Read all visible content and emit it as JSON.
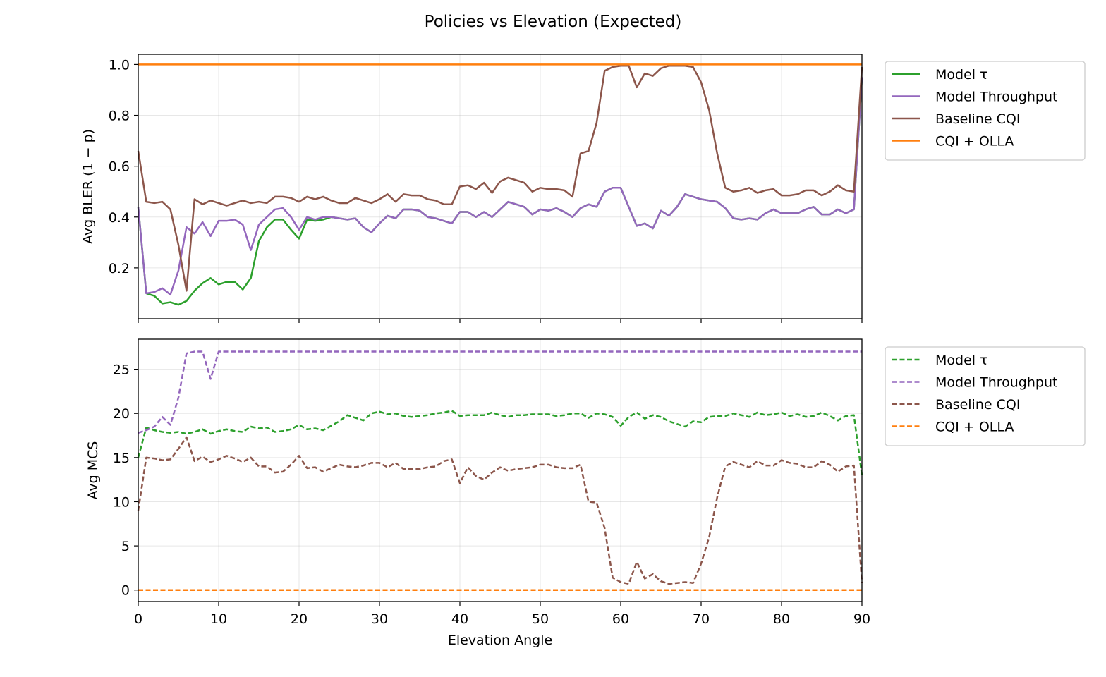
{
  "chart_data": {
    "type": "line",
    "title": "Policies vs Elevation (Expected)",
    "xlabel": "Elevation Angle",
    "xlim": [
      0,
      90
    ],
    "xticks": [
      0,
      10,
      20,
      30,
      40,
      50,
      60,
      70,
      80,
      90
    ],
    "x": [
      0,
      1,
      2,
      3,
      4,
      5,
      6,
      7,
      8,
      9,
      10,
      11,
      12,
      13,
      14,
      15,
      16,
      17,
      18,
      19,
      20,
      21,
      22,
      23,
      24,
      25,
      26,
      27,
      28,
      29,
      30,
      31,
      32,
      33,
      34,
      35,
      36,
      37,
      38,
      39,
      40,
      41,
      42,
      43,
      44,
      45,
      46,
      47,
      48,
      49,
      50,
      51,
      52,
      53,
      54,
      55,
      56,
      57,
      58,
      59,
      60,
      61,
      62,
      63,
      64,
      65,
      66,
      67,
      68,
      69,
      70,
      71,
      72,
      73,
      74,
      75,
      76,
      77,
      78,
      79,
      80,
      81,
      82,
      83,
      84,
      85,
      86,
      87,
      88,
      89,
      90
    ],
    "panels": [
      {
        "name": "top",
        "ylabel": "Avg BLER (1 − p)",
        "ylim": [
          0.0,
          1.04
        ],
        "yticks": [
          0.2,
          0.4,
          0.6,
          0.8,
          1.0
        ],
        "ytick_labels": [
          "0.2",
          "0.4",
          "0.6",
          "0.8",
          "1.0"
        ],
        "line_style": "solid",
        "series": [
          {
            "name": "Model τ",
            "color": "#2ca02c",
            "values": [
              0.44,
              0.1,
              0.09,
              0.06,
              0.065,
              0.055,
              0.07,
              0.11,
              0.14,
              0.16,
              0.135,
              0.145,
              0.145,
              0.115,
              0.16,
              0.305,
              0.36,
              0.39,
              0.39,
              0.35,
              0.315,
              0.39,
              0.385,
              0.39,
              0.4,
              0.395,
              0.39,
              0.395,
              0.36,
              0.34,
              0.375,
              0.405,
              0.395,
              0.43,
              0.43,
              0.425,
              0.4,
              0.395,
              0.385,
              0.375,
              0.42,
              0.42,
              0.4,
              0.42,
              0.4,
              0.43,
              0.46,
              0.45,
              0.44,
              0.41,
              0.43,
              0.425,
              0.435,
              0.42,
              0.4,
              0.435,
              0.45,
              0.44,
              0.5,
              0.515,
              0.515,
              0.44,
              0.365,
              0.375,
              0.355,
              0.425,
              0.405,
              0.44,
              0.49,
              0.48,
              0.47,
              0.465,
              0.46,
              0.435,
              0.395,
              0.39,
              0.395,
              0.39,
              0.415,
              0.43,
              0.415,
              0.415,
              0.415,
              0.43,
              0.44,
              0.41,
              0.41,
              0.43,
              0.415,
              0.43,
              0.95
            ]
          },
          {
            "name": "Model Throughput",
            "color": "#9467bd",
            "values": [
              0.44,
              0.1,
              0.105,
              0.12,
              0.095,
              0.19,
              0.36,
              0.335,
              0.38,
              0.325,
              0.385,
              0.385,
              0.39,
              0.37,
              0.27,
              0.37,
              0.4,
              0.43,
              0.435,
              0.4,
              0.35,
              0.4,
              0.39,
              0.4,
              0.4,
              0.395,
              0.39,
              0.395,
              0.36,
              0.34,
              0.375,
              0.405,
              0.395,
              0.43,
              0.43,
              0.425,
              0.4,
              0.395,
              0.385,
              0.375,
              0.42,
              0.42,
              0.4,
              0.42,
              0.4,
              0.43,
              0.46,
              0.45,
              0.44,
              0.41,
              0.43,
              0.425,
              0.435,
              0.42,
              0.4,
              0.435,
              0.45,
              0.44,
              0.5,
              0.515,
              0.515,
              0.44,
              0.365,
              0.375,
              0.355,
              0.425,
              0.405,
              0.44,
              0.49,
              0.48,
              0.47,
              0.465,
              0.46,
              0.435,
              0.395,
              0.39,
              0.395,
              0.39,
              0.415,
              0.43,
              0.415,
              0.415,
              0.415,
              0.43,
              0.44,
              0.41,
              0.41,
              0.43,
              0.415,
              0.43,
              0.95
            ]
          },
          {
            "name": "Baseline CQI",
            "color": "#8c564b",
            "values": [
              0.66,
              0.46,
              0.455,
              0.46,
              0.43,
              0.29,
              0.11,
              0.47,
              0.45,
              0.465,
              0.455,
              0.445,
              0.455,
              0.465,
              0.455,
              0.46,
              0.455,
              0.48,
              0.48,
              0.475,
              0.46,
              0.48,
              0.47,
              0.48,
              0.465,
              0.455,
              0.455,
              0.475,
              0.465,
              0.455,
              0.47,
              0.49,
              0.46,
              0.49,
              0.485,
              0.485,
              0.47,
              0.465,
              0.45,
              0.45,
              0.52,
              0.525,
              0.51,
              0.535,
              0.495,
              0.54,
              0.555,
              0.545,
              0.535,
              0.5,
              0.515,
              0.51,
              0.51,
              0.505,
              0.48,
              0.65,
              0.66,
              0.77,
              0.975,
              0.99,
              0.995,
              0.995,
              0.91,
              0.965,
              0.955,
              0.985,
              0.995,
              0.995,
              0.995,
              0.99,
              0.93,
              0.82,
              0.65,
              0.515,
              0.5,
              0.505,
              0.515,
              0.495,
              0.505,
              0.51,
              0.485,
              0.485,
              0.49,
              0.505,
              0.505,
              0.485,
              0.5,
              0.525,
              0.505,
              0.5,
              0.99
            ]
          },
          {
            "name": "CQI + OLLA",
            "color": "#ff7f0e",
            "values": [
              1.0,
              1.0,
              1.0,
              1.0,
              1.0,
              1.0,
              1.0,
              1.0,
              1.0,
              1.0,
              1.0,
              1.0,
              1.0,
              1.0,
              1.0,
              1.0,
              1.0,
              1.0,
              1.0,
              1.0,
              1.0,
              1.0,
              1.0,
              1.0,
              1.0,
              1.0,
              1.0,
              1.0,
              1.0,
              1.0,
              1.0,
              1.0,
              1.0,
              1.0,
              1.0,
              1.0,
              1.0,
              1.0,
              1.0,
              1.0,
              1.0,
              1.0,
              1.0,
              1.0,
              1.0,
              1.0,
              1.0,
              1.0,
              1.0,
              1.0,
              1.0,
              1.0,
              1.0,
              1.0,
              1.0,
              1.0,
              1.0,
              1.0,
              1.0,
              1.0,
              1.0,
              1.0,
              1.0,
              1.0,
              1.0,
              1.0,
              1.0,
              1.0,
              1.0,
              1.0,
              1.0,
              1.0,
              1.0,
              1.0,
              1.0,
              1.0,
              1.0,
              1.0,
              1.0,
              1.0,
              1.0,
              1.0,
              1.0,
              1.0,
              1.0,
              1.0,
              1.0,
              1.0,
              1.0,
              1.0,
              1.0
            ]
          }
        ]
      },
      {
        "name": "bottom",
        "ylabel": "Avg MCS",
        "ylim": [
          -1.3,
          28.4
        ],
        "yticks": [
          0,
          5,
          10,
          15,
          20,
          25
        ],
        "ytick_labels": [
          "0",
          "5",
          "10",
          "15",
          "20",
          "25"
        ],
        "line_style": "dashed",
        "series": [
          {
            "name": "Model τ",
            "color": "#2ca02c",
            "values": [
              15.0,
              18.4,
              18.1,
              17.9,
              17.8,
              17.9,
              17.7,
              17.9,
              18.2,
              17.7,
              18.0,
              18.2,
              18.0,
              17.9,
              18.5,
              18.3,
              18.4,
              17.9,
              18.0,
              18.2,
              18.7,
              18.2,
              18.3,
              18.1,
              18.6,
              19.1,
              19.8,
              19.5,
              19.2,
              20.0,
              20.2,
              19.9,
              20.0,
              19.7,
              19.6,
              19.7,
              19.8,
              20.0,
              20.1,
              20.3,
              19.7,
              19.8,
              19.8,
              19.8,
              20.1,
              19.8,
              19.6,
              19.8,
              19.8,
              19.9,
              19.9,
              19.9,
              19.7,
              19.8,
              20.0,
              20.0,
              19.5,
              20.0,
              19.9,
              19.6,
              18.6,
              19.6,
              20.1,
              19.4,
              19.8,
              19.6,
              19.1,
              18.8,
              18.5,
              19.1,
              19.0,
              19.6,
              19.7,
              19.7,
              20.0,
              19.8,
              19.6,
              20.1,
              19.8,
              19.9,
              20.1,
              19.7,
              19.9,
              19.6,
              19.7,
              20.1,
              19.7,
              19.2,
              19.7,
              19.8,
              13.0
            ]
          },
          {
            "name": "Model Throughput",
            "color": "#9467bd",
            "values": [
              17.8,
              18.1,
              18.5,
              19.6,
              18.7,
              21.8,
              26.8,
              27.0,
              27.0,
              23.9,
              27.0,
              27.0,
              27.0,
              27.0,
              27.0,
              27.0,
              27.0,
              27.0,
              27.0,
              27.0,
              27.0,
              27.0,
              27.0,
              27.0,
              27.0,
              27.0,
              27.0,
              27.0,
              27.0,
              27.0,
              27.0,
              27.0,
              27.0,
              27.0,
              27.0,
              27.0,
              27.0,
              27.0,
              27.0,
              27.0,
              27.0,
              27.0,
              27.0,
              27.0,
              27.0,
              27.0,
              27.0,
              27.0,
              27.0,
              27.0,
              27.0,
              27.0,
              27.0,
              27.0,
              27.0,
              27.0,
              27.0,
              27.0,
              27.0,
              27.0,
              27.0,
              27.0,
              27.0,
              27.0,
              27.0,
              27.0,
              27.0,
              27.0,
              27.0,
              27.0,
              27.0,
              27.0,
              27.0,
              27.0,
              27.0,
              27.0,
              27.0,
              27.0,
              27.0,
              27.0,
              27.0,
              27.0,
              27.0,
              27.0,
              27.0,
              27.0,
              27.0,
              27.0,
              27.0,
              27.0,
              27.0
            ]
          },
          {
            "name": "Baseline CQI",
            "color": "#8c564b",
            "values": [
              9.0,
              15.0,
              14.9,
              14.7,
              14.8,
              16.0,
              17.3,
              14.6,
              15.1,
              14.5,
              14.8,
              15.2,
              14.9,
              14.5,
              15.0,
              14.0,
              14.0,
              13.3,
              13.4,
              14.2,
              15.2,
              13.8,
              13.9,
              13.4,
              13.8,
              14.2,
              14.0,
              13.9,
              14.1,
              14.4,
              14.4,
              13.9,
              14.4,
              13.7,
              13.7,
              13.7,
              13.9,
              14.0,
              14.6,
              14.8,
              12.1,
              13.9,
              12.9,
              12.5,
              13.3,
              13.9,
              13.5,
              13.7,
              13.8,
              13.9,
              14.2,
              14.2,
              13.9,
              13.8,
              13.8,
              14.2,
              10.0,
              9.9,
              7.0,
              1.4,
              0.9,
              0.7,
              3.2,
              1.3,
              1.8,
              1.0,
              0.7,
              0.8,
              0.9,
              0.8,
              3.0,
              6.0,
              10.5,
              14.0,
              14.5,
              14.2,
              13.9,
              14.6,
              14.1,
              14.1,
              14.7,
              14.4,
              14.3,
              13.9,
              13.9,
              14.6,
              14.2,
              13.4,
              14.0,
              14.1,
              0.8
            ]
          },
          {
            "name": "CQI + OLLA",
            "color": "#ff7f0e",
            "values": [
              0,
              0,
              0,
              0,
              0,
              0,
              0,
              0,
              0,
              0,
              0,
              0,
              0,
              0,
              0,
              0,
              0,
              0,
              0,
              0,
              0,
              0,
              0,
              0,
              0,
              0,
              0,
              0,
              0,
              0,
              0,
              0,
              0,
              0,
              0,
              0,
              0,
              0,
              0,
              0,
              0,
              0,
              0,
              0,
              0,
              0,
              0,
              0,
              0,
              0,
              0,
              0,
              0,
              0,
              0,
              0,
              0,
              0,
              0,
              0,
              0,
              0,
              0,
              0,
              0,
              0,
              0,
              0,
              0,
              0,
              0,
              0,
              0,
              0,
              0,
              0,
              0,
              0,
              0,
              0,
              0,
              0,
              0,
              0,
              0,
              0,
              0,
              0,
              0,
              0,
              0
            ]
          }
        ]
      }
    ]
  }
}
